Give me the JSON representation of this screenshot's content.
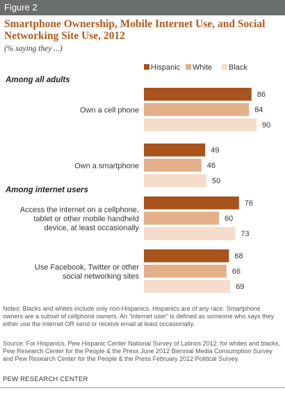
{
  "figure_label": "Figure 2",
  "title": "Smartphone Ownership, Mobile Internet Use, and Social Networking Site Use, 2012",
  "subtitle": "(% saying they ...)",
  "chart_data": {
    "type": "bar",
    "orientation": "horizontal",
    "xlim": [
      0,
      100
    ],
    "grid": false,
    "legend_position": "top-right",
    "series": [
      {
        "name": "Hispanic",
        "color": "#a8521c"
      },
      {
        "name": "White",
        "color": "#e4b089"
      },
      {
        "name": "Black",
        "color": "#f6dccb"
      }
    ],
    "sections": [
      {
        "label": "Among all adults",
        "groups": [
          {
            "label": [
              "Own a cell phone"
            ],
            "values": [
              86,
              84,
              90
            ]
          },
          {
            "label": [
              "Own a smartphone"
            ],
            "values": [
              49,
              46,
              50
            ]
          }
        ]
      },
      {
        "label": "Among internet users",
        "groups": [
          {
            "label": [
              "Access the internet on a cellphone,",
              "tablet or other mobile handheld",
              "device, at least occasionally"
            ],
            "values": [
              76,
              60,
              73
            ]
          },
          {
            "label": [
              "Use Facebook, Twitter or other",
              "social networking sites"
            ],
            "values": [
              68,
              66,
              69
            ]
          }
        ]
      }
    ]
  },
  "notes": "Notes: Blacks and whites include only non-Hispanics. Hispanics are of any race. Smartphone owners are a subset of cellphone owners.  An \"internet user\" is defined as someone who says they either use the internet OR send or receive email at least occasionally.",
  "source": "Source: For Hispanics, Pew Hispanic Center National Survey of Latinos 2012; for whites and blacks, Pew Research Center for the People & the Press June 2012 Biennial Media Consumption Survey and Pew Research Center for the People & the Press February 2012 Political Survey.",
  "brand": "PEW RESEARCH CENTER"
}
